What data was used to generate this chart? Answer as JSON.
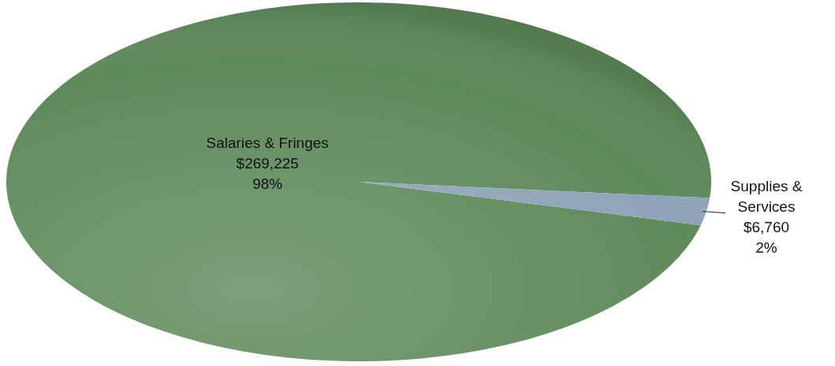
{
  "chart_data": {
    "type": "pie",
    "categories": [
      "Salaries & Fringes",
      "Supplies & Services"
    ],
    "values": [
      269225,
      6760
    ],
    "colors": [
      "#5f8a5c",
      "#8fa3b8"
    ],
    "value_labels": [
      "$269,225\n98%",
      "$6,760\n2%"
    ]
  }
}
